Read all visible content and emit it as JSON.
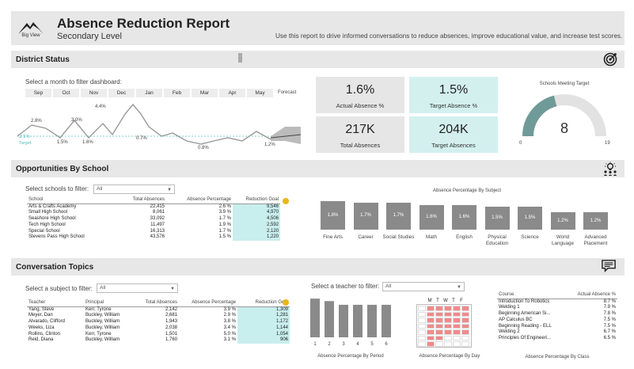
{
  "header": {
    "logo_label": "Big View",
    "title": "Absence Reduction Report",
    "subtitle": "Secondary Level",
    "description": "Use this report to drive informed conversations to reduce absences, improve educational value, and increase test scores."
  },
  "district": {
    "section_title": "District Status",
    "filter_prompt": "Select a month to filter dashboard:",
    "months": [
      "Sep",
      "Oct",
      "Nov",
      "Dec",
      "Jan",
      "Feb",
      "Mar",
      "Apr",
      "May"
    ],
    "forecast_label": "Forecast",
    "target_label": "Target",
    "line_labels": [
      "2.1%",
      "2.8%",
      "1.5%",
      "3.0%",
      "1.6%",
      "4.4%",
      "0.7%",
      "0.8%",
      "1.2%"
    ],
    "kpis": {
      "actual_value": "1.6%",
      "actual_label": "Actual Absence %",
      "target_value": "1.5%",
      "target_label": "Target Absence %",
      "total_value": "217K",
      "total_label": "Total Absences",
      "target_abs_value": "204K",
      "target_abs_label": "Target Absences"
    },
    "gauge": {
      "title": "Schools Meeting Target",
      "value": "8",
      "min": "0",
      "max": "19",
      "fraction": 0.42
    }
  },
  "opportunities": {
    "section_title": "Opportunities By School",
    "filter_prompt": "Select schools to filter:",
    "dropdown_value": "All",
    "columns": [
      "School",
      "Total Absences",
      "Absence Percentage",
      "Reduction Goal"
    ],
    "rows": [
      [
        "Arts & Crafts Academy",
        "22,415",
        "2.6 %",
        "9,546"
      ],
      [
        "Small High School",
        "8,061",
        "3.9 %",
        "4,970"
      ],
      [
        "Seashore High School",
        "33,092",
        "1.7 %",
        "4,506"
      ],
      [
        "Tech High School",
        "11,497",
        "1.9 %",
        "2,592"
      ],
      [
        "Special School",
        "16,313",
        "1.7 %",
        "2,120"
      ],
      [
        "Stevens Pass High School",
        "43,576",
        "1.5 %",
        "1,220"
      ]
    ],
    "subject_chart_title": "Absence Percentage By Subject",
    "subjects": [
      {
        "name": "Fine Arts",
        "label": "1.8%",
        "value": 1.8
      },
      {
        "name": "Career",
        "label": "1.7%",
        "value": 1.7
      },
      {
        "name": "Social Studies",
        "label": "1.7%",
        "value": 1.7
      },
      {
        "name": "Math",
        "label": "1.6%",
        "value": 1.6
      },
      {
        "name": "English",
        "label": "1.6%",
        "value": 1.6
      },
      {
        "name": "Physical Education",
        "label": "1.5%",
        "value": 1.5
      },
      {
        "name": "Science",
        "label": "1.5%",
        "value": 1.5
      },
      {
        "name": "World Language",
        "label": "1.2%",
        "value": 1.2
      },
      {
        "name": "Advanced Placement",
        "label": "1.2%",
        "value": 1.2
      }
    ]
  },
  "conversation": {
    "section_title": "Conversation Topics",
    "subject_prompt": "Select a subject to filter:",
    "subject_value": "All",
    "teacher_prompt": "Select a teacher to filter:",
    "teacher_value": "All",
    "columns": [
      "Teacher",
      "Principal",
      "Total Absences",
      "Absence Percentage",
      "Reduction Goal"
    ],
    "rows": [
      [
        "Yang, Steve",
        "Kerr, Tyrone",
        "2,142",
        "3.9 %",
        "1,309"
      ],
      [
        "Meyer, Dan",
        "Buckley, William",
        "2,681",
        "2.9 %",
        "1,281"
      ],
      [
        "Alvarado, Clifford",
        "Buckley, William",
        "1,943",
        "3.8 %",
        "1,172"
      ],
      [
        "Weeks, Liza",
        "Buckley, William",
        "2,038",
        "3.4 %",
        "1,144"
      ],
      [
        "Rollins, Clinton",
        "Kerr, Tyrone",
        "1,501",
        "5.0 %",
        "1,054"
      ],
      [
        "Reid, Diana",
        "Buckley, William",
        "1,760",
        "3.1 %",
        "906"
      ]
    ],
    "period_chart_title": "Absence Percentage By Period",
    "periods": [
      {
        "label": "1",
        "value": 0.94
      },
      {
        "label": "2",
        "value": 0.88
      },
      {
        "label": "3",
        "value": 0.79
      },
      {
        "label": "4",
        "value": 0.79
      },
      {
        "label": "5",
        "value": 0.79
      },
      {
        "label": "6",
        "value": 0.79
      }
    ],
    "day_chart_title": "Absence Percentage By Day",
    "days": [
      "M",
      "T",
      "W",
      "T",
      "F"
    ],
    "class_chart_title": "Absence Percentage By Class",
    "class_columns": [
      "Course",
      "Actual Absence %"
    ],
    "classes": [
      [
        "Introduction To Robotics",
        "8.7 %"
      ],
      [
        "Welding 1",
        "7.9 %"
      ],
      [
        "Beginning American Si...",
        "7.8 %"
      ],
      [
        "AP Calculus BC",
        "7.5 %"
      ],
      [
        "Beginning Reading - ELL",
        "7.5 %"
      ],
      [
        "Welding 2",
        "6.7 %"
      ],
      [
        "Principles Of Engineeri...",
        "6.5 %"
      ]
    ]
  }
}
